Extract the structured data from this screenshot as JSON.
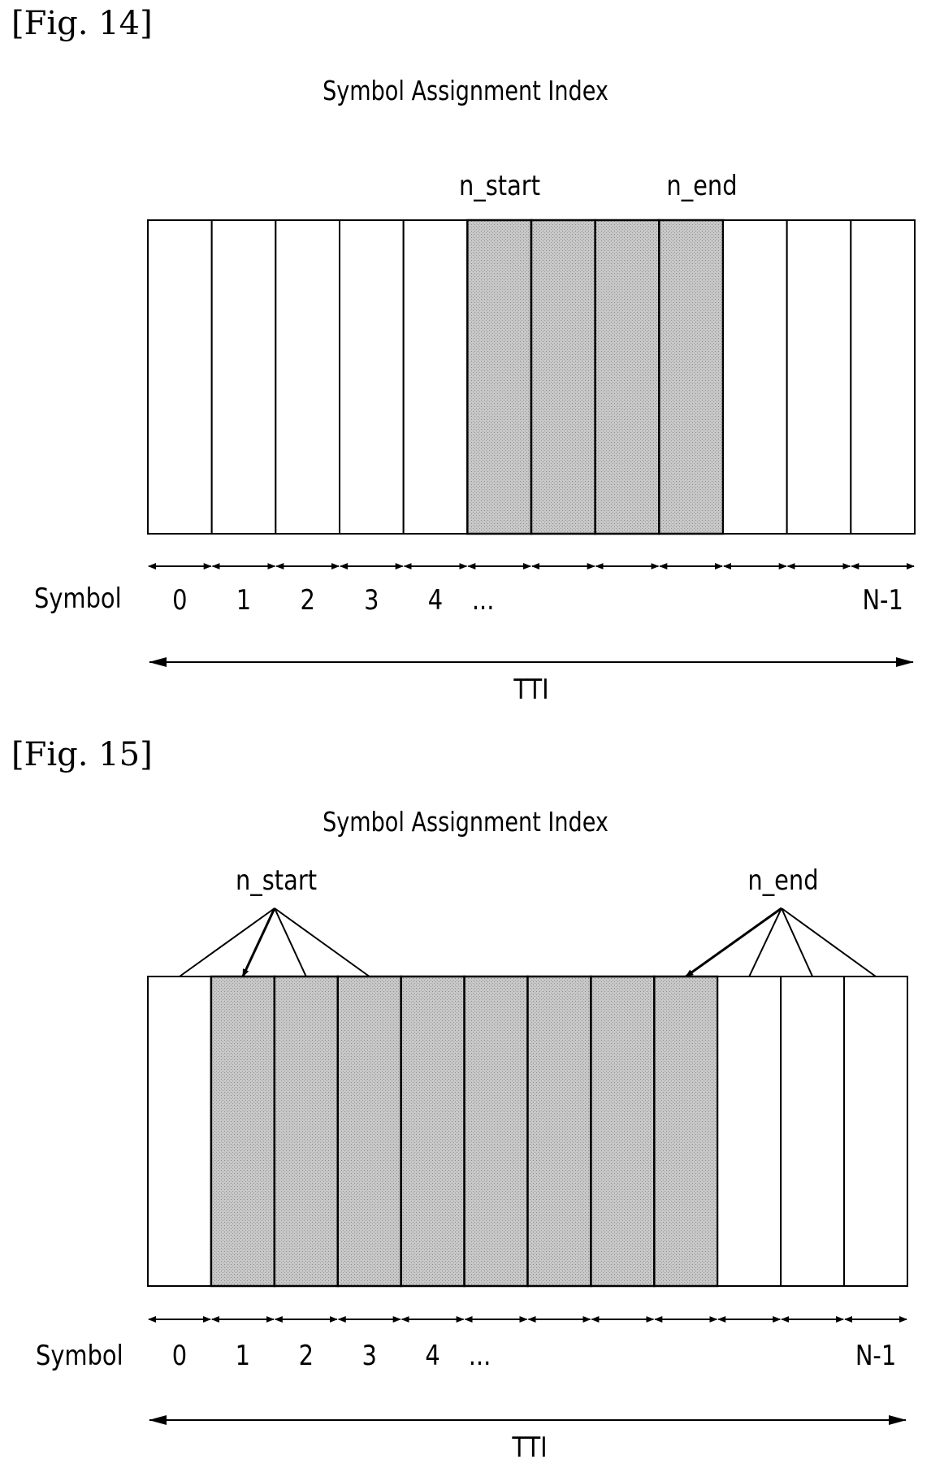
{
  "figures": [
    {
      "label": "[Fig. 14]",
      "title": "Symbol Assignment Index",
      "marker_labels": {
        "start": "n_start",
        "end": "n_end"
      },
      "cells": 12,
      "shaded_cells": [
        5,
        6,
        7,
        8
      ],
      "start_targets": [
        5
      ],
      "end_targets": [
        8
      ],
      "axis_label": "Symbol",
      "symbol_labels": [
        "0",
        "1",
        "2",
        "3",
        "4",
        "...",
        "",
        "",
        "",
        "",
        "",
        "N-1"
      ],
      "span_label": "TTI"
    },
    {
      "label": "[Fig. 15]",
      "title": "Symbol Assignment Index",
      "marker_labels": {
        "start": "n_start",
        "end": "n_end"
      },
      "cells": 12,
      "shaded_cells": [
        1,
        2,
        3,
        4,
        5,
        6,
        7,
        8
      ],
      "start_targets": [
        0,
        1,
        2,
        3
      ],
      "end_targets": [
        8,
        9,
        10,
        11
      ],
      "axis_label": "Symbol",
      "symbol_labels": [
        "0",
        "1",
        "2",
        "3",
        "4",
        "...",
        "",
        "",
        "",
        "",
        "",
        "N-1"
      ],
      "span_label": "TTI"
    }
  ],
  "colors": {
    "shaded": "#c8c8c8",
    "line": "#000000"
  }
}
